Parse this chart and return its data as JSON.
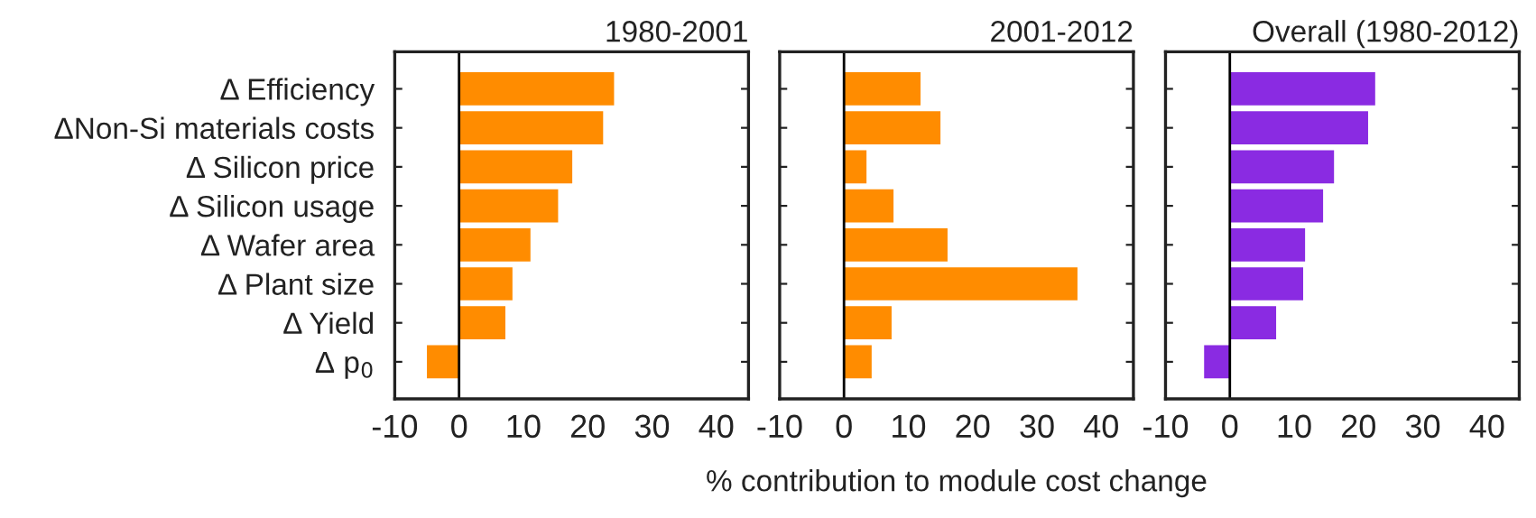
{
  "chart_data": [
    {
      "type": "bar",
      "orientation": "horizontal",
      "title": "1980-2001",
      "categories": [
        "Δ Efficiency",
        "ΔNon-Si materials costs",
        "Δ Silicon price",
        "Δ Silicon usage",
        "Δ Wafer area",
        "Δ Plant size",
        "Δ Yield",
        "Δ p$_{0}$"
      ],
      "series": [
        {
          "color": "#ff8c00",
          "values": [
            24.1,
            22.4,
            17.6,
            15.4,
            11.1,
            8.3,
            7.2,
            -5.0
          ]
        }
      ],
      "xlim": [
        -10,
        45
      ],
      "xticks": [
        -10,
        0,
        10,
        20,
        30,
        40
      ],
      "ref_lines": [
        {
          "axis": "x",
          "value": 0
        }
      ],
      "grid": false,
      "legend": false
    },
    {
      "type": "bar",
      "orientation": "horizontal",
      "title": "2001-2012",
      "xlabel": "% contribution to module cost change",
      "categories": [
        null,
        null,
        null,
        null,
        null,
        null,
        null,
        null
      ],
      "series": [
        {
          "color": "#ff8c00",
          "values": [
            11.9,
            15.0,
            3.5,
            7.7,
            16.1,
            36.3,
            7.4,
            4.3
          ]
        }
      ],
      "xlim": [
        -10,
        45
      ],
      "xticks": [
        -10,
        0,
        10,
        20,
        30,
        40
      ],
      "ref_lines": [
        {
          "axis": "x",
          "value": 0
        }
      ],
      "tick_labels": "x",
      "grid": false,
      "legend": false
    },
    {
      "type": "bar",
      "orientation": "horizontal",
      "title": "Overall (1980-2012)",
      "categories": [
        null,
        null,
        null,
        null,
        null,
        null,
        null,
        null
      ],
      "series": [
        {
          "color": "#8a2be2",
          "values": [
            22.6,
            21.5,
            16.2,
            14.5,
            11.7,
            11.4,
            7.2,
            -4.0
          ]
        }
      ],
      "xlim": [
        -10,
        45
      ],
      "xticks": [
        -10,
        0,
        10,
        20,
        30,
        40
      ],
      "ref_lines": [
        {
          "axis": "x",
          "value": 0
        }
      ],
      "tick_labels": "x",
      "grid": false,
      "legend": false
    }
  ]
}
